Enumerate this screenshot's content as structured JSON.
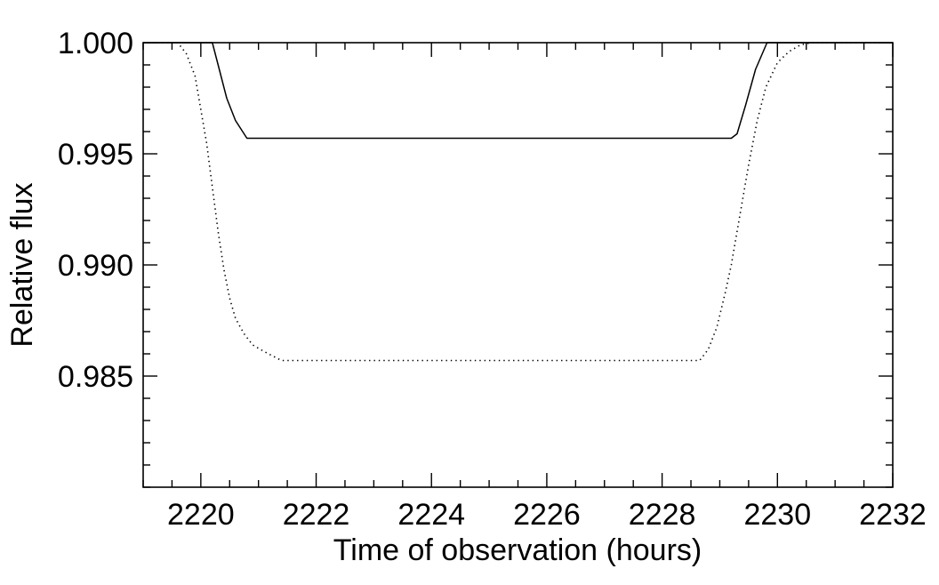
{
  "chart_data": {
    "type": "line",
    "title": "",
    "xlabel": "Time of observation (hours)",
    "ylabel": "Relative flux",
    "xlim": [
      2219.0,
      2232.0
    ],
    "ylim": [
      0.98,
      1.0
    ],
    "x_ticks": [
      2220,
      2222,
      2224,
      2226,
      2228,
      2230,
      2232
    ],
    "x_tick_labels": [
      "2220",
      "2222",
      "2224",
      "2226",
      "2228",
      "2230",
      "2232"
    ],
    "y_ticks": [
      0.985,
      0.99,
      0.995,
      1.0
    ],
    "y_tick_labels": [
      "0.985",
      "0.990",
      "0.995",
      "1.000"
    ],
    "x_minor_step": 0.5,
    "y_minor_step": 0.001,
    "grid": false,
    "legend": "none",
    "series": [
      {
        "line_style": "solid",
        "color": "#000000",
        "x": [
          2219.0,
          2220.2,
          2220.3,
          2220.45,
          2220.6,
          2220.8,
          2229.2,
          2229.3,
          2229.45,
          2229.62,
          2229.82,
          2232.0
        ],
        "y": [
          1.0,
          1.0,
          0.999,
          0.9975,
          0.9965,
          0.9957,
          0.9957,
          0.9959,
          0.9972,
          0.9988,
          1.0,
          1.0
        ]
      },
      {
        "line_style": "dotted",
        "color": "#000000",
        "x": [
          2219.0,
          2219.6,
          2219.75,
          2219.9,
          2220.0,
          2220.1,
          2220.2,
          2220.3,
          2220.4,
          2220.5,
          2220.6,
          2220.75,
          2220.9,
          2221.1,
          2221.4,
          2228.65,
          2228.8,
          2228.95,
          2229.1,
          2229.2,
          2229.3,
          2229.4,
          2229.5,
          2229.65,
          2229.8,
          2230.0,
          2230.2,
          2230.4,
          2230.6,
          2232.0
        ],
        "y": [
          1.0,
          1.0,
          0.9995,
          0.9985,
          0.997,
          0.9955,
          0.9935,
          0.9915,
          0.9898,
          0.9885,
          0.9876,
          0.9869,
          0.9864,
          0.9861,
          0.9857,
          0.9857,
          0.9862,
          0.9872,
          0.9888,
          0.99,
          0.9915,
          0.993,
          0.9945,
          0.9965,
          0.998,
          0.9991,
          0.9996,
          0.9999,
          1.0,
          1.0
        ]
      }
    ]
  }
}
